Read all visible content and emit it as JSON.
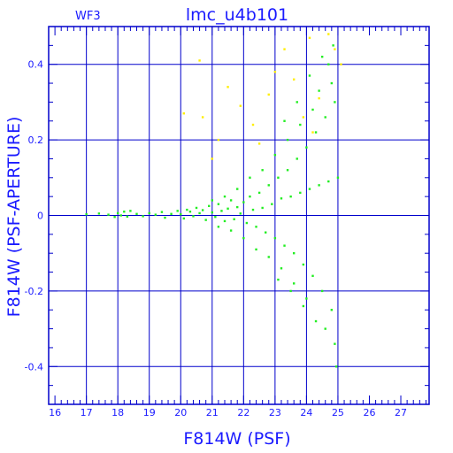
{
  "panel_label": "WF3",
  "title": "lmc_u4b101",
  "colors": {
    "axes": "#0000cc",
    "text": "#1a1aff",
    "main_points": "#22ee22",
    "outlier_points": "#ffee00"
  },
  "chart_data": {
    "type": "scatter",
    "title": "lmc_u4b101",
    "xlabel": "F814W (PSF)",
    "ylabel": "F814W (PSF-APERTURE)",
    "xlim": [
      15.8,
      27.9
    ],
    "ylim": [
      -0.5,
      0.5
    ],
    "x_ticks": [
      "16",
      "17",
      "18",
      "19",
      "20",
      "21",
      "22",
      "23",
      "24",
      "25",
      "26",
      "27"
    ],
    "y_ticks": [
      "-0.4",
      "-0.2",
      "0",
      "0.2",
      "0.4"
    ],
    "grid": true,
    "series": [
      {
        "color": "#22ee22",
        "points": [
          [
            17.0,
            0.003
          ],
          [
            17.4,
            0.005
          ],
          [
            17.7,
            0.002
          ],
          [
            17.9,
            -0.004
          ],
          [
            18.0,
            0.006
          ],
          [
            18.1,
            0.0
          ],
          [
            18.2,
            0.01
          ],
          [
            18.3,
            -0.003
          ],
          [
            18.4,
            0.012
          ],
          [
            18.6,
            0.004
          ],
          [
            18.8,
            -0.002
          ],
          [
            19.0,
            0.006
          ],
          [
            19.2,
            0.002
          ],
          [
            19.4,
            0.009
          ],
          [
            19.5,
            -0.006
          ],
          [
            19.7,
            0.004
          ],
          [
            19.9,
            0.012
          ],
          [
            20.0,
            0.003
          ],
          [
            20.1,
            -0.008
          ],
          [
            20.2,
            0.015
          ],
          [
            20.3,
            0.01
          ],
          [
            20.4,
            -0.002
          ],
          [
            20.5,
            0.02
          ],
          [
            20.6,
            0.006
          ],
          [
            20.7,
            0.014
          ],
          [
            20.8,
            -0.012
          ],
          [
            20.9,
            0.025
          ],
          [
            21.0,
            0.008
          ],
          [
            21.1,
            -0.004
          ],
          [
            21.2,
            0.03
          ],
          [
            21.3,
            0.012
          ],
          [
            21.4,
            -0.015
          ],
          [
            21.5,
            0.018
          ],
          [
            21.6,
            0.04
          ],
          [
            21.7,
            -0.01
          ],
          [
            21.8,
            0.022
          ],
          [
            21.9,
            0.005
          ],
          [
            22.0,
            0.035
          ],
          [
            22.1,
            -0.02
          ],
          [
            22.2,
            0.05
          ],
          [
            22.3,
            0.015
          ],
          [
            22.4,
            -0.03
          ],
          [
            22.5,
            0.06
          ],
          [
            22.6,
            0.02
          ],
          [
            22.7,
            -0.045
          ],
          [
            22.8,
            0.08
          ],
          [
            22.9,
            0.03
          ],
          [
            23.0,
            -0.06
          ],
          [
            23.1,
            0.1
          ],
          [
            23.2,
            0.045
          ],
          [
            23.3,
            -0.08
          ],
          [
            23.4,
            0.12
          ],
          [
            23.5,
            0.05
          ],
          [
            23.6,
            -0.1
          ],
          [
            23.7,
            0.15
          ],
          [
            23.8,
            0.06
          ],
          [
            23.9,
            -0.13
          ],
          [
            24.0,
            0.18
          ],
          [
            24.1,
            0.07
          ],
          [
            24.2,
            -0.16
          ],
          [
            24.3,
            0.22
          ],
          [
            24.4,
            0.08
          ],
          [
            24.5,
            -0.2
          ],
          [
            24.6,
            0.26
          ],
          [
            24.7,
            0.09
          ],
          [
            24.8,
            -0.25
          ],
          [
            24.9,
            0.3
          ],
          [
            25.0,
            0.1
          ],
          [
            24.8,
            0.35
          ],
          [
            24.6,
            -0.3
          ],
          [
            24.9,
            -0.34
          ],
          [
            24.7,
            0.4
          ],
          [
            24.4,
            0.33
          ],
          [
            24.2,
            0.28
          ],
          [
            24.0,
            -0.22
          ],
          [
            23.8,
            0.24
          ],
          [
            23.6,
            -0.18
          ],
          [
            23.4,
            0.2
          ],
          [
            23.2,
            -0.14
          ],
          [
            23.0,
            0.16
          ],
          [
            22.8,
            -0.11
          ],
          [
            22.6,
            0.12
          ],
          [
            22.4,
            -0.09
          ],
          [
            22.2,
            0.1
          ],
          [
            22.0,
            -0.06
          ],
          [
            21.8,
            0.07
          ],
          [
            21.6,
            -0.04
          ],
          [
            21.4,
            0.05
          ],
          [
            21.2,
            -0.03
          ],
          [
            21.0,
            0.04
          ],
          [
            24.95,
            -0.4
          ],
          [
            24.85,
            0.45
          ],
          [
            24.5,
            0.42
          ],
          [
            24.3,
            -0.28
          ],
          [
            24.1,
            0.37
          ],
          [
            23.9,
            -0.24
          ],
          [
            23.7,
            0.3
          ],
          [
            23.5,
            -0.2
          ],
          [
            23.3,
            0.25
          ],
          [
            23.1,
            -0.17
          ]
        ]
      },
      {
        "color": "#ffee00",
        "points": [
          [
            20.1,
            0.27
          ],
          [
            20.6,
            0.41
          ],
          [
            20.7,
            0.26
          ],
          [
            21.2,
            0.2
          ],
          [
            21.5,
            0.34
          ],
          [
            21.9,
            0.29
          ],
          [
            22.3,
            0.24
          ],
          [
            22.8,
            0.32
          ],
          [
            23.0,
            0.38
          ],
          [
            23.3,
            0.44
          ],
          [
            23.6,
            0.36
          ],
          [
            24.1,
            0.47
          ],
          [
            24.4,
            0.31
          ],
          [
            24.7,
            0.48
          ],
          [
            24.9,
            0.44
          ],
          [
            25.1,
            0.4
          ],
          [
            24.2,
            0.22
          ],
          [
            23.9,
            0.26
          ],
          [
            22.5,
            0.19
          ],
          [
            21.0,
            0.15
          ]
        ]
      }
    ]
  }
}
